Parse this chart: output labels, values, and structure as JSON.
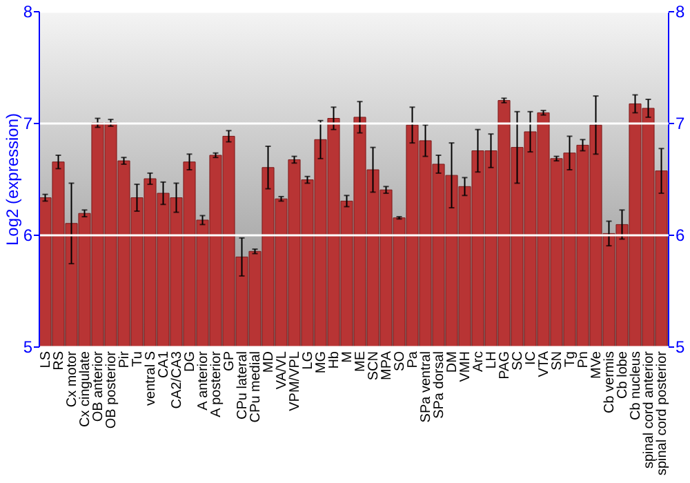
{
  "chart_data": {
    "type": "bar",
    "ylabel": "Log2 (expression)",
    "categories": [
      "LS",
      "RS",
      "Cx motor",
      "Cx cingulate",
      "OB anterior",
      "OB posterior",
      "Pir",
      "Tu",
      "ventral S",
      "CA1",
      "CA2/CA3",
      "DG",
      "A anterior",
      "A posterior",
      "GP",
      "CPu lateral",
      "CPu medial",
      "MD",
      "VA/VL",
      "VPM/VPL",
      "LG",
      "MG",
      "Hb",
      "M",
      "ME",
      "SCN",
      "MPA",
      "SO",
      "Pa",
      "SPa ventral",
      "SPa dorsal",
      "DM",
      "VMH",
      "Arc",
      "LH",
      "PAG",
      "SC",
      "IC",
      "VTA",
      "SN",
      "Tg",
      "Pn",
      "MVe",
      "Cb vermis",
      "Cb lobe",
      "Cb nucleus",
      "spinal cord anterior",
      "spinal cord posterior"
    ],
    "values": [
      6.33,
      6.65,
      6.1,
      6.19,
      7.0,
      7.0,
      6.66,
      6.33,
      6.5,
      6.37,
      6.33,
      6.65,
      6.13,
      6.71,
      6.88,
      5.8,
      5.85,
      6.6,
      6.32,
      6.67,
      6.49,
      6.85,
      7.04,
      6.3,
      7.05,
      6.58,
      6.4,
      6.15,
      6.98,
      6.84,
      6.63,
      6.53,
      6.43,
      6.75,
      6.75,
      7.2,
      6.78,
      6.92,
      7.09,
      6.68,
      6.73,
      6.8,
      6.98,
      6.01,
      6.09,
      7.17,
      7.13,
      6.57
    ],
    "errors": [
      0.03,
      0.06,
      0.36,
      0.03,
      0.04,
      0.03,
      0.03,
      0.12,
      0.05,
      0.1,
      0.13,
      0.07,
      0.04,
      0.02,
      0.05,
      0.17,
      0.02,
      0.19,
      0.02,
      0.03,
      0.03,
      0.17,
      0.1,
      0.05,
      0.14,
      0.2,
      0.03,
      0.01,
      0.16,
      0.14,
      0.08,
      0.29,
      0.08,
      0.19,
      0.15,
      0.02,
      0.32,
      0.18,
      0.02,
      0.02,
      0.15,
      0.05,
      0.26,
      0.11,
      0.13,
      0.08,
      0.08,
      0.2
    ],
    "color": "#b83434",
    "ylim": [
      5,
      8
    ],
    "yticks": [
      5,
      6,
      7,
      8
    ],
    "y2lim": [
      5,
      8
    ],
    "y2ticks": [
      5,
      6,
      7,
      8
    ],
    "grid": "y"
  }
}
